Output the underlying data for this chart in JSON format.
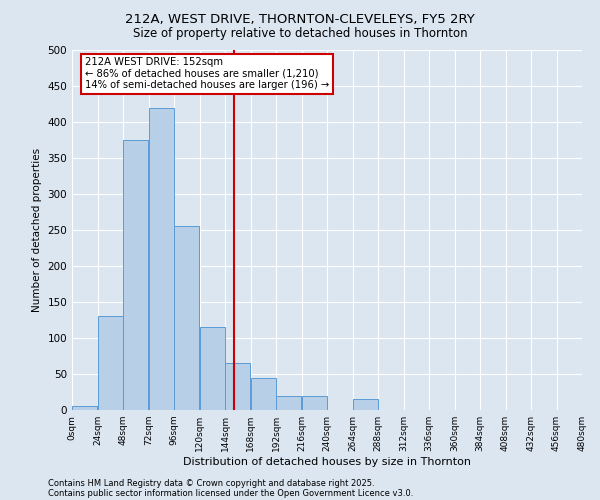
{
  "title_line1": "212A, WEST DRIVE, THORNTON-CLEVELEYS, FY5 2RY",
  "title_line2": "Size of property relative to detached houses in Thornton",
  "xlabel": "Distribution of detached houses by size in Thornton",
  "ylabel": "Number of detached properties",
  "bar_color": "#b8cfe8",
  "bar_edge_color": "#5b9bd5",
  "background_color": "#dce6f1",
  "grid_color": "#ffffff",
  "annotation_box_color": "#cc0000",
  "vline_color": "#cc0000",
  "bins": [
    0,
    24,
    48,
    72,
    96,
    120,
    144,
    168,
    192,
    216,
    240,
    264,
    288,
    312,
    336,
    360,
    384,
    408,
    432,
    456,
    480
  ],
  "bar_heights": [
    5,
    130,
    375,
    420,
    255,
    115,
    65,
    45,
    20,
    20,
    0,
    15,
    0,
    0,
    0,
    0,
    0,
    0,
    0,
    0
  ],
  "property_size": 152,
  "annotation_title": "212A WEST DRIVE: 152sqm",
  "annotation_line1": "← 86% of detached houses are smaller (1,210)",
  "annotation_line2": "14% of semi-detached houses are larger (196) →",
  "ylim": [
    0,
    500
  ],
  "yticks": [
    0,
    50,
    100,
    150,
    200,
    250,
    300,
    350,
    400,
    450,
    500
  ],
  "footnote_line1": "Contains HM Land Registry data © Crown copyright and database right 2025.",
  "footnote_line2": "Contains public sector information licensed under the Open Government Licence v3.0."
}
